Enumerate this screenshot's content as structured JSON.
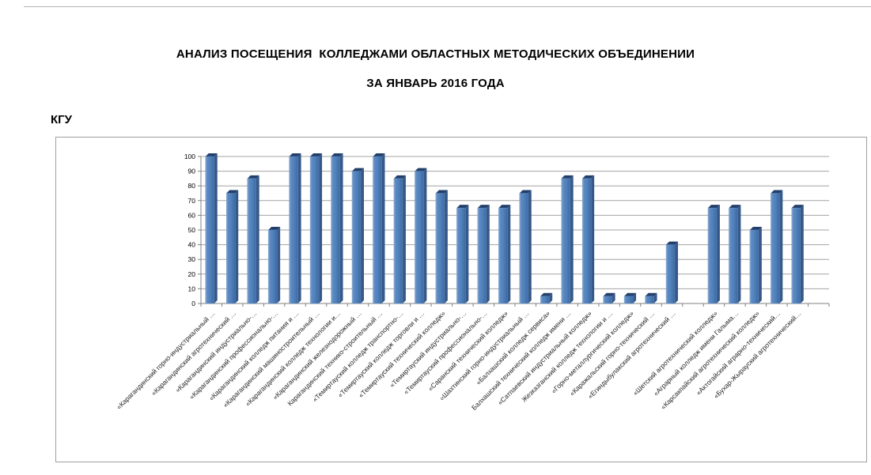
{
  "page": {
    "title_line1": "АНАЛИЗ ПОСЕЩЕНИЯ  КОЛЛЕДЖАМИ ОБЛАСТНЫХ МЕТОДИЧЕСКИХ ОБЪЕДИНЕНИИ",
    "title_line2": "ЗА ЯНВАРЬ 2016 ГОДА",
    "org_label": "КГУ"
  },
  "chart_data": {
    "type": "bar",
    "style": "3d-column",
    "title": "АНАЛИЗ ПОСЕЩЕНИЯ КОЛЛЕДЖАМИ ОБЛАСТНЫХ МЕТОДИЧЕСКИХ ОБЪЕДИНЕНИИ ЗА ЯНВАРЬ 2016 ГОДА",
    "categories": [
      "«Карагандинский горно-индустриальный …",
      "«Карагандинский агротехнический …",
      "«Карагандинский индустриально-…",
      "«Карагандинский профессионально-…",
      "«Карагандинский колледж  питания и …",
      "«Карагандинский машиностроительный …",
      "«Карагандинский колледж  технологии и…",
      "«Карагандинский железнодорожный …",
      "Карагандинский технико-строительный …",
      "«Темиртауский колледж транспортно-…",
      "«Темиртауский колледж  торговли и …",
      "«Темиртауский технический  колледж»",
      "«Темиртауский  индустриально-…",
      "«Темиртауский  профессионально-…",
      "«Саранский технический  колледж»",
      "«Шахтинский горно-индустриальный …",
      "«Балхашский колледж  сервиса»",
      "Балхашский технический  колледж имени …",
      "«Сатпаевский индустриальный колледж»",
      "Жезказганский колледж  технологии и …",
      "«Горно-металлургический колледж»",
      "«Каражальский горно-технический …",
      "«Егиндыбулакский агротехнический …",
      "",
      "«Шетский  агротехнический  колледж»",
      "«Аграрный колледж  имени  Галыма…",
      "«Карсакпайский агротехнический колледж»",
      "«Актогайский аграрно-технический…",
      "«Бухар-Жырауский агротехнический…"
    ],
    "values": [
      100,
      75,
      85,
      50,
      100,
      100,
      100,
      90,
      100,
      85,
      90,
      75,
      65,
      65,
      65,
      75,
      5,
      85,
      85,
      5,
      5,
      5,
      40,
      0,
      65,
      65,
      50,
      75,
      65
    ],
    "xlabel": "",
    "ylabel": "",
    "ylim": [
      0,
      100
    ],
    "ytick_step": 10,
    "grid": true,
    "legend_position": "none",
    "bar_face_color": "#4F81BD",
    "bar_face_light": "#8FAFD4",
    "bar_face_dark": "#3E689E",
    "bar_side_color": "#35598A",
    "bar_top_color": "#223F6B",
    "gridline_color": "#a3a3a3",
    "axis_color": "#808080",
    "label_color": "#262626"
  }
}
